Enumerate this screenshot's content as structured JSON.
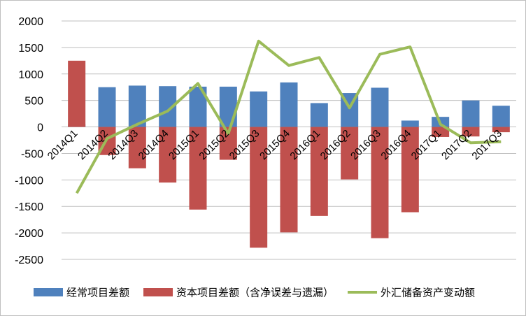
{
  "chart_data": {
    "type": "bar",
    "categories": [
      "2014Q1",
      "2014Q2",
      "2014Q3",
      "2014Q4",
      "2015Q1",
      "2015Q2",
      "2015Q3",
      "2015Q4",
      "2016Q1",
      "2016Q2",
      "2016Q3",
      "2016Q4",
      "2017Q1",
      "2017Q2",
      "2017Q3"
    ],
    "series": [
      {
        "name": "经常项目差额",
        "type": "bar",
        "color": "#4f81bd",
        "values": [
          50,
          750,
          780,
          770,
          760,
          760,
          670,
          840,
          450,
          640,
          740,
          120,
          190,
          500,
          400
        ]
      },
      {
        "name": "资本项目差额（含净误差与遗漏）",
        "type": "bar",
        "color": "#c0504d",
        "values": [
          1250,
          -530,
          -780,
          -1050,
          -1560,
          -620,
          -2280,
          -1990,
          -1680,
          -990,
          -2100,
          -1610,
          -190,
          -180,
          -100
        ]
      },
      {
        "name": "外汇储备资产变动额",
        "type": "line",
        "color": "#9bbb59",
        "values": [
          -1250,
          -220,
          50,
          300,
          820,
          -130,
          1620,
          1160,
          1310,
          360,
          1370,
          1510,
          50,
          -300,
          -280
        ]
      }
    ],
    "yticks": [
      2000,
      1500,
      1000,
      500,
      0,
      -500,
      -1000,
      -1500,
      -2000,
      -2500
    ],
    "ylim": [
      -2500,
      2000
    ],
    "grid": true,
    "legend_position": "bottom",
    "title": "",
    "xlabel": "",
    "ylabel": ""
  }
}
